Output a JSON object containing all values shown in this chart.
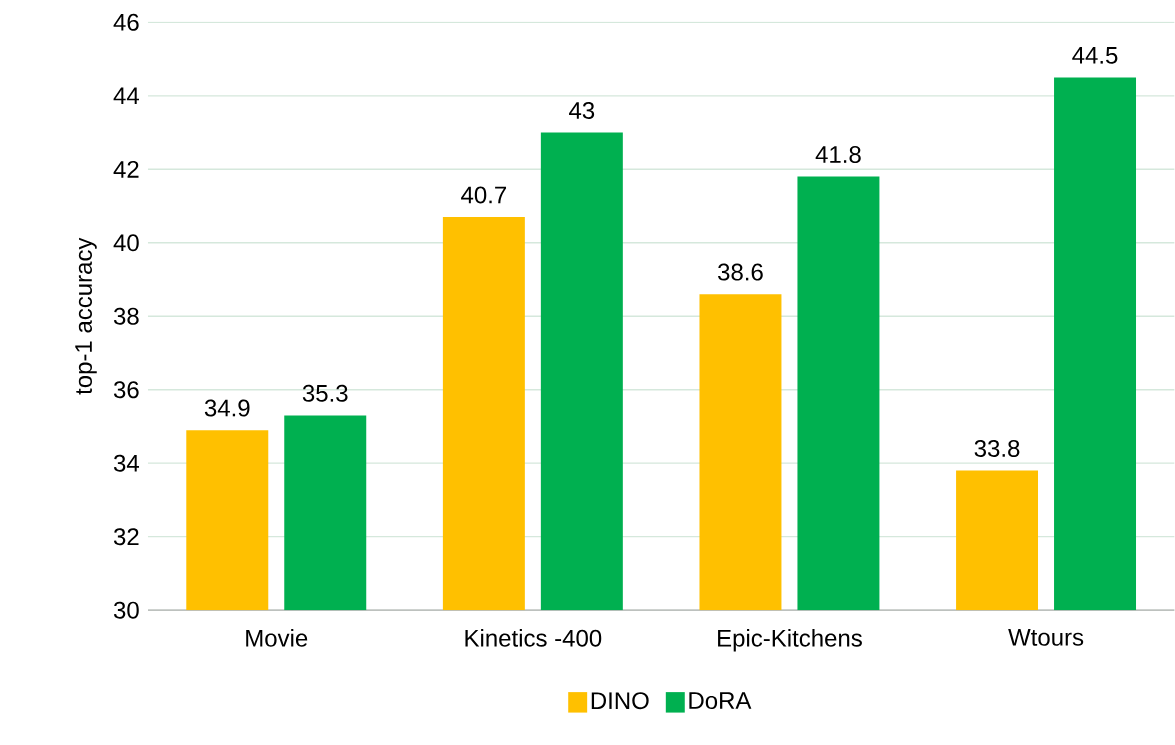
{
  "chart_data": {
    "type": "bar",
    "ylabel": "top-1 accuracy",
    "categories": [
      "Movie",
      "Kinetics -400",
      "Epic-Kitchens",
      "Wtours"
    ],
    "series": [
      {
        "name": "DINO",
        "color": "#ffc000",
        "values": [
          34.9,
          40.7,
          38.6,
          33.8
        ]
      },
      {
        "name": "DoRA",
        "color": "#00b050",
        "values": [
          35.3,
          43,
          41.8,
          44.5
        ]
      }
    ],
    "ylim": [
      30,
      46
    ],
    "yticks": [
      30,
      32,
      34,
      36,
      38,
      40,
      42,
      44,
      46
    ],
    "grid": "y",
    "legend": "bottom",
    "data_labels": true
  }
}
